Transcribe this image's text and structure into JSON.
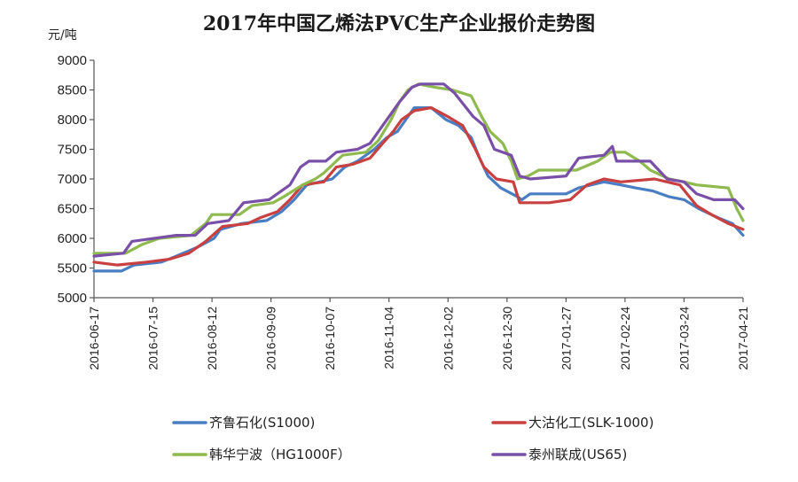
{
  "chart_data": {
    "type": "line",
    "title": "2017年中国乙烯法PVC生产企业报价走势图",
    "ylabel": "元/吨",
    "xlabel": "",
    "ylim": [
      5000,
      9000
    ],
    "yticks": [
      5000,
      5500,
      6000,
      6500,
      7000,
      7500,
      8000,
      8500,
      9000
    ],
    "xlim": [
      "2016-06-17",
      "2017-04-21"
    ],
    "xticks": [
      "2016-06-17",
      "2016-07-15",
      "2016-08-12",
      "2016-09-09",
      "2016-10-07",
      "2016-11-04",
      "2016-12-02",
      "2016-12-30",
      "2017-01-27",
      "2017-02-24",
      "2017-03-24",
      "2017-04-21"
    ],
    "grid": false,
    "legend_position": "bottom",
    "series": [
      {
        "name": "齐鲁石化(S1000)",
        "color": "#4a7ec2",
        "points": [
          [
            "2016-06-17",
            5450
          ],
          [
            "2016-06-30",
            5450
          ],
          [
            "2016-07-06",
            5550
          ],
          [
            "2016-07-19",
            5600
          ],
          [
            "2016-07-26",
            5700
          ],
          [
            "2016-08-05",
            5850
          ],
          [
            "2016-08-13",
            6000
          ],
          [
            "2016-08-16",
            6150
          ],
          [
            "2016-08-26",
            6250
          ],
          [
            "2016-09-07",
            6300
          ],
          [
            "2016-09-14",
            6450
          ],
          [
            "2016-09-20",
            6650
          ],
          [
            "2016-09-26",
            6900
          ],
          [
            "2016-10-08",
            7000
          ],
          [
            "2016-10-14",
            7200
          ],
          [
            "2016-10-20",
            7300
          ],
          [
            "2016-10-28",
            7500
          ],
          [
            "2016-11-03",
            7700
          ],
          [
            "2016-11-08",
            7800
          ],
          [
            "2016-11-12",
            8000
          ],
          [
            "2016-11-16",
            8200
          ],
          [
            "2016-11-24",
            8200
          ],
          [
            "2016-12-01",
            8000
          ],
          [
            "2016-12-07",
            7900
          ],
          [
            "2016-12-13",
            7700
          ],
          [
            "2016-12-17",
            7350
          ],
          [
            "2016-12-21",
            7050
          ],
          [
            "2016-12-27",
            6850
          ],
          [
            "2017-01-04",
            6700
          ],
          [
            "2017-01-06",
            6650
          ],
          [
            "2017-01-10",
            6750
          ],
          [
            "2017-01-27",
            6750
          ],
          [
            "2017-02-02",
            6850
          ],
          [
            "2017-02-14",
            6950
          ],
          [
            "2017-02-22",
            6900
          ],
          [
            "2017-03-01",
            6850
          ],
          [
            "2017-03-09",
            6800
          ],
          [
            "2017-03-17",
            6700
          ],
          [
            "2017-03-24",
            6650
          ],
          [
            "2017-03-31",
            6500
          ],
          [
            "2017-04-09",
            6350
          ],
          [
            "2017-04-16",
            6250
          ],
          [
            "2017-04-21",
            6050
          ]
        ]
      },
      {
        "name": "大沽化工(SLK-1000)",
        "color": "#c94040",
        "points": [
          [
            "2016-06-17",
            5600
          ],
          [
            "2016-06-28",
            5550
          ],
          [
            "2016-07-12",
            5600
          ],
          [
            "2016-07-23",
            5650
          ],
          [
            "2016-08-01",
            5750
          ],
          [
            "2016-08-09",
            5950
          ],
          [
            "2016-08-17",
            6200
          ],
          [
            "2016-08-29",
            6250
          ],
          [
            "2016-09-04",
            6350
          ],
          [
            "2016-09-12",
            6450
          ],
          [
            "2016-09-18",
            6650
          ],
          [
            "2016-09-24",
            6900
          ],
          [
            "2016-10-04",
            6950
          ],
          [
            "2016-10-10",
            7200
          ],
          [
            "2016-10-18",
            7250
          ],
          [
            "2016-10-26",
            7350
          ],
          [
            "2016-11-01",
            7600
          ],
          [
            "2016-11-06",
            7800
          ],
          [
            "2016-11-10",
            8000
          ],
          [
            "2016-11-16",
            8150
          ],
          [
            "2016-11-24",
            8200
          ],
          [
            "2016-12-02",
            8050
          ],
          [
            "2016-12-09",
            7900
          ],
          [
            "2016-12-15",
            7500
          ],
          [
            "2016-12-19",
            7200
          ],
          [
            "2016-12-25",
            7000
          ],
          [
            "2017-01-02",
            6950
          ],
          [
            "2017-01-05",
            6600
          ],
          [
            "2017-01-19",
            6600
          ],
          [
            "2017-01-29",
            6650
          ],
          [
            "2017-02-06",
            6900
          ],
          [
            "2017-02-14",
            7000
          ],
          [
            "2017-02-22",
            6950
          ],
          [
            "2017-03-10",
            7000
          ],
          [
            "2017-03-22",
            6900
          ],
          [
            "2017-03-30",
            6550
          ],
          [
            "2017-04-06",
            6400
          ],
          [
            "2017-04-14",
            6250
          ],
          [
            "2017-04-21",
            6150
          ]
        ]
      },
      {
        "name": "韩华宁波（HG1000F）",
        "color": "#8fba4f",
        "points": [
          [
            "2016-06-17",
            5750
          ],
          [
            "2016-07-02",
            5750
          ],
          [
            "2016-07-10",
            5900
          ],
          [
            "2016-07-18",
            6000
          ],
          [
            "2016-08-02",
            6050
          ],
          [
            "2016-08-09",
            6250
          ],
          [
            "2016-08-12",
            6400
          ],
          [
            "2016-08-25",
            6400
          ],
          [
            "2016-08-31",
            6550
          ],
          [
            "2016-09-10",
            6600
          ],
          [
            "2016-09-15",
            6700
          ],
          [
            "2016-09-24",
            6900
          ],
          [
            "2016-09-30",
            7000
          ],
          [
            "2016-10-04",
            7100
          ],
          [
            "2016-10-13",
            7400
          ],
          [
            "2016-10-24",
            7450
          ],
          [
            "2016-10-30",
            7650
          ],
          [
            "2016-11-05",
            8000
          ],
          [
            "2016-11-09",
            8300
          ],
          [
            "2016-11-13",
            8500
          ],
          [
            "2016-11-18",
            8600
          ],
          [
            "2016-11-25",
            8550
          ],
          [
            "2016-12-04",
            8500
          ],
          [
            "2016-12-13",
            8400
          ],
          [
            "2016-12-18",
            8050
          ],
          [
            "2016-12-22",
            7800
          ],
          [
            "2016-12-28",
            7600
          ],
          [
            "2017-01-01",
            7300
          ],
          [
            "2017-01-04",
            7000
          ],
          [
            "2017-01-09",
            7050
          ],
          [
            "2017-01-14",
            7150
          ],
          [
            "2017-02-01",
            7150
          ],
          [
            "2017-02-11",
            7300
          ],
          [
            "2017-02-17",
            7450
          ],
          [
            "2017-02-24",
            7450
          ],
          [
            "2017-03-03",
            7300
          ],
          [
            "2017-03-08",
            7150
          ],
          [
            "2017-03-17",
            7000
          ],
          [
            "2017-03-24",
            6950
          ],
          [
            "2017-03-30",
            6900
          ],
          [
            "2017-04-14",
            6850
          ],
          [
            "2017-04-18",
            6500
          ],
          [
            "2017-04-21",
            6300
          ]
        ]
      },
      {
        "name": "泰州联成(US65)",
        "color": "#7a4fa8",
        "points": [
          [
            "2016-06-17",
            5700
          ],
          [
            "2016-07-01",
            5750
          ],
          [
            "2016-07-05",
            5950
          ],
          [
            "2016-07-26",
            6050
          ],
          [
            "2016-08-04",
            6050
          ],
          [
            "2016-08-10",
            6250
          ],
          [
            "2016-08-20",
            6300
          ],
          [
            "2016-08-27",
            6600
          ],
          [
            "2016-09-08",
            6650
          ],
          [
            "2016-09-18",
            6900
          ],
          [
            "2016-09-23",
            7200
          ],
          [
            "2016-09-27",
            7300
          ],
          [
            "2016-10-05",
            7300
          ],
          [
            "2016-10-10",
            7450
          ],
          [
            "2016-10-20",
            7500
          ],
          [
            "2016-10-26",
            7600
          ],
          [
            "2016-11-01",
            7900
          ],
          [
            "2016-11-05",
            8100
          ],
          [
            "2016-11-09",
            8300
          ],
          [
            "2016-11-15",
            8550
          ],
          [
            "2016-11-19",
            8600
          ],
          [
            "2016-11-30",
            8600
          ],
          [
            "2016-12-05",
            8450
          ],
          [
            "2016-12-14",
            8050
          ],
          [
            "2016-12-19",
            7900
          ],
          [
            "2016-12-24",
            7500
          ],
          [
            "2017-01-01",
            7400
          ],
          [
            "2017-01-05",
            7050
          ],
          [
            "2017-01-10",
            7000
          ],
          [
            "2017-01-27",
            7050
          ],
          [
            "2017-02-02",
            7350
          ],
          [
            "2017-02-14",
            7400
          ],
          [
            "2017-02-18",
            7550
          ],
          [
            "2017-02-20",
            7300
          ],
          [
            "2017-03-08",
            7300
          ],
          [
            "2017-03-16",
            7000
          ],
          [
            "2017-03-24",
            6950
          ],
          [
            "2017-03-30",
            6750
          ],
          [
            "2017-04-07",
            6650
          ],
          [
            "2017-04-17",
            6650
          ],
          [
            "2017-04-21",
            6500
          ]
        ]
      }
    ]
  }
}
